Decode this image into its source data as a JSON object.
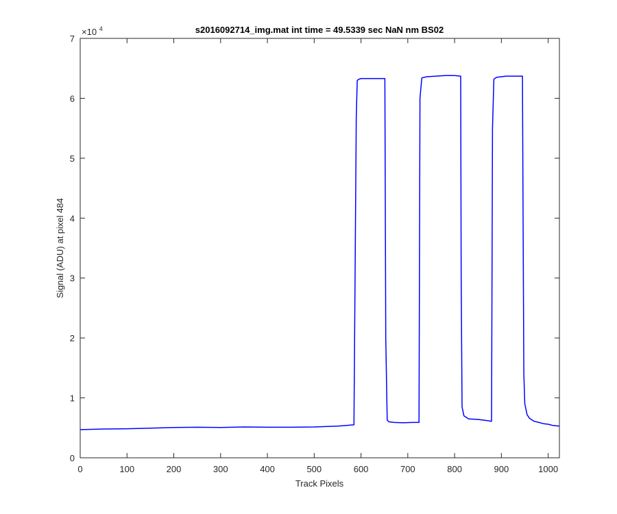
{
  "chart_data": {
    "type": "line",
    "title": "s2016092714_img.mat int time = 49.5339 sec  NaN nm BS02",
    "xlabel": "Track Pixels",
    "ylabel": "Signal (ADU) at pixel 484",
    "exponent_label": "×10",
    "exponent_power": "4",
    "xlim": [
      0,
      1024
    ],
    "ylim": [
      0,
      7
    ],
    "y_scale_factor": 10000,
    "xticks": [
      "0",
      "100",
      "200",
      "300",
      "400",
      "500",
      "600",
      "700",
      "800",
      "900",
      "1000"
    ],
    "yticks": [
      "0",
      "1",
      "2",
      "3",
      "4",
      "5",
      "6",
      "7"
    ],
    "grid": false,
    "series": [
      {
        "color": "#0000ff",
        "x": [
          0,
          50,
          100,
          150,
          200,
          250,
          300,
          350,
          400,
          450,
          500,
          550,
          585,
          590,
          592,
          596,
          600,
          620,
          640,
          651,
          653,
          656,
          660,
          670,
          690,
          710,
          724,
          726,
          730,
          740,
          760,
          780,
          800,
          813,
          814,
          816,
          820,
          830,
          850,
          870,
          879,
          881,
          884,
          890,
          910,
          930,
          945,
          946,
          948,
          950,
          955,
          960,
          970,
          980,
          990,
          1000,
          1010,
          1024
        ],
        "y": [
          4700,
          4800,
          4850,
          4950,
          5050,
          5100,
          5050,
          5150,
          5100,
          5100,
          5150,
          5300,
          5500,
          57000,
          63000,
          63200,
          63300,
          63300,
          63300,
          63300,
          20000,
          6300,
          6000,
          5900,
          5850,
          5900,
          5900,
          60000,
          63400,
          63600,
          63700,
          63800,
          63800,
          63700,
          30000,
          8500,
          7000,
          6500,
          6400,
          6200,
          6100,
          55000,
          63200,
          63500,
          63700,
          63700,
          63700,
          45000,
          14000,
          9000,
          7200,
          6600,
          6100,
          5900,
          5700,
          5600,
          5400,
          5300
        ]
      }
    ]
  }
}
